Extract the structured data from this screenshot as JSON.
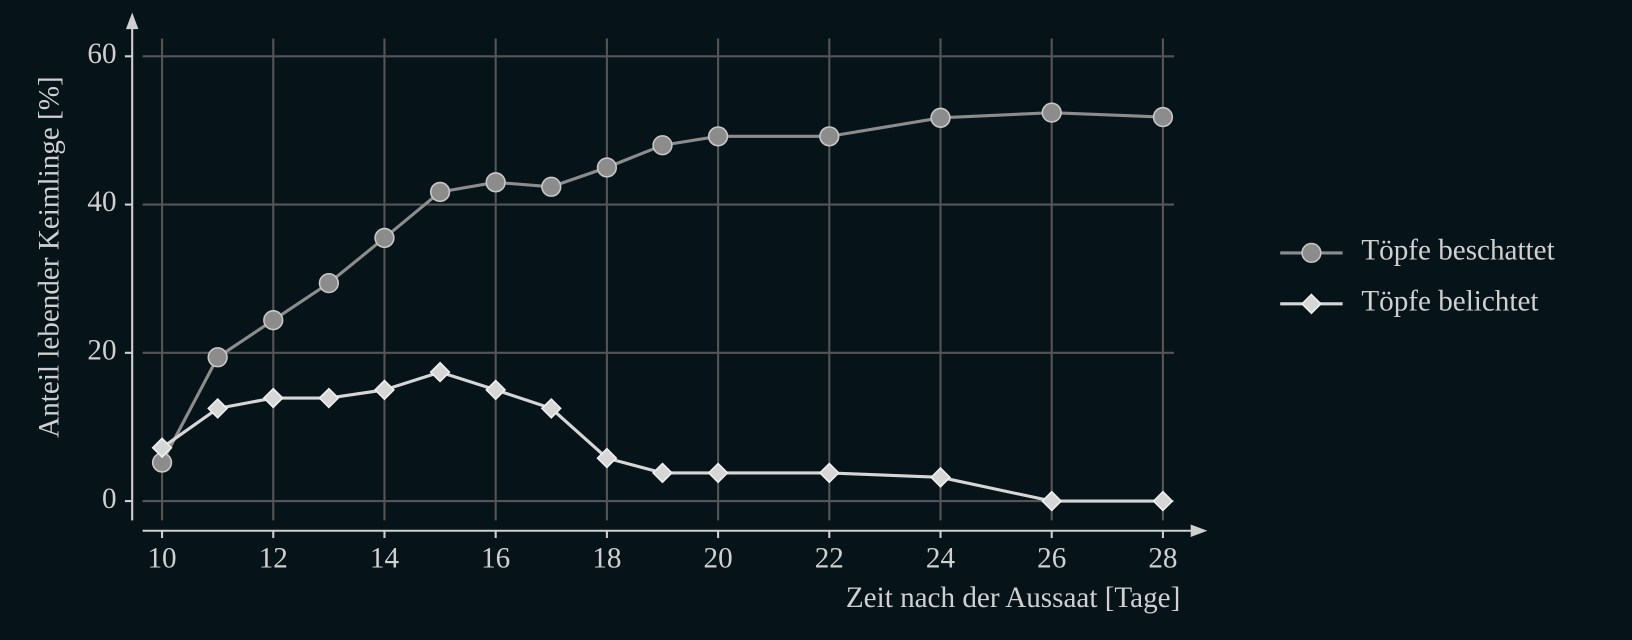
{
  "chart_data": {
    "type": "line",
    "x_label": "Zeit nach der Aussaat [Tage]",
    "y_label": "Anteil lebender Keimlinge [%]",
    "x": [
      10,
      11,
      12,
      13,
      14,
      15,
      16,
      17,
      18,
      19,
      20,
      22,
      24,
      26,
      28
    ],
    "series": [
      {
        "name": "Töpfe beschattet",
        "color": "#8c8c8c",
        "marker": "circle",
        "values": [
          5.2,
          19.4,
          24.4,
          29.4,
          35.5,
          41.7,
          43,
          42.4,
          45,
          48,
          49.2,
          49.2,
          51.7,
          52.4,
          51.8
        ]
      },
      {
        "name": "Töpfe belichtet",
        "color": "#d6d6d6",
        "marker": "diamond",
        "values": [
          7.2,
          12.5,
          13.9,
          13.9,
          15,
          17.4,
          15,
          12.5,
          5.8,
          3.8,
          3.8,
          3.8,
          3.2,
          0,
          0
        ]
      }
    ],
    "xlim": [
      9.65,
      28.2
    ],
    "ylim": [
      -4,
      62.4
    ],
    "xticks": [
      10,
      12,
      14,
      16,
      18,
      20,
      22,
      24,
      26,
      28
    ],
    "yticks": [
      0,
      20,
      40,
      60
    ],
    "grid": true,
    "legend": "right"
  }
}
